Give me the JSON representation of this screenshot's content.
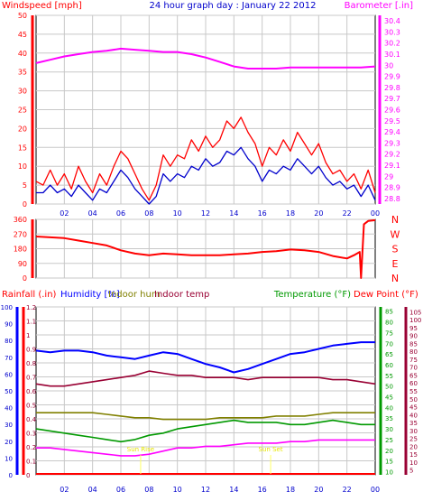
{
  "chart_data": [
    {
      "type": "line",
      "title": "24 hour graph day : January 22 2012",
      "left_axis_label": "Windspeed [mph]",
      "right_axis_label": "Barometer [.in]",
      "y_left_ticks": [
        "0",
        "5",
        "10",
        "15",
        "20",
        "25",
        "30",
        "35",
        "40",
        "45",
        "50"
      ],
      "y_left_range": [
        0,
        50
      ],
      "y_right_ticks": [
        "28.8",
        "28.9",
        "29",
        "29.1",
        "29.2",
        "29.3",
        "29.4",
        "29.5",
        "29.6",
        "29.7",
        "29.8",
        "29.9",
        "30",
        "30.1",
        "30.2",
        "30.3",
        "30.4"
      ],
      "y_right_range": [
        28.75,
        30.45
      ],
      "x_range": [
        0,
        24
      ],
      "x_ticks": [
        "02",
        "04",
        "06",
        "08",
        "10",
        "12",
        "14",
        "16",
        "18",
        "20",
        "22",
        "00"
      ],
      "series": [
        {
          "key": "barometer",
          "color": "#ff00ff",
          "axis": "right",
          "x": [
            0,
            1,
            2,
            3,
            4,
            5,
            6,
            7,
            8,
            9,
            10,
            11,
            12,
            13,
            14,
            15,
            16,
            17,
            18,
            19,
            20,
            21,
            22,
            23,
            24
          ],
          "y": [
            30.02,
            30.05,
            30.08,
            30.1,
            30.12,
            30.13,
            30.15,
            30.14,
            30.13,
            30.12,
            30.12,
            30.1,
            30.07,
            30.03,
            29.99,
            29.97,
            29.97,
            29.97,
            29.98,
            29.98,
            29.98,
            29.98,
            29.98,
            29.98,
            29.99
          ]
        },
        {
          "key": "gust",
          "color": "#ff0000",
          "axis": "left",
          "x": [
            0,
            0.5,
            1,
            1.5,
            2,
            2.5,
            3,
            3.5,
            4,
            4.5,
            5,
            5.5,
            6,
            6.5,
            7,
            7.5,
            8,
            8.5,
            9,
            9.5,
            10,
            10.5,
            11,
            11.5,
            12,
            12.5,
            13,
            13.5,
            14,
            14.5,
            15,
            15.5,
            16,
            16.5,
            17,
            17.5,
            18,
            18.5,
            19,
            19.5,
            20,
            20.5,
            21,
            21.5,
            22,
            22.5,
            23,
            23.5,
            24
          ],
          "y": [
            6,
            5,
            9,
            5,
            8,
            4,
            10,
            6,
            3,
            8,
            5,
            10,
            14,
            12,
            8,
            4,
            1,
            5,
            13,
            10,
            13,
            12,
            17,
            14,
            18,
            15,
            17,
            22,
            20,
            23,
            19,
            16,
            10,
            15,
            13,
            17,
            14,
            19,
            16,
            13,
            16,
            11,
            8,
            9,
            6,
            8,
            4,
            9,
            3
          ]
        },
        {
          "key": "windspeed",
          "color": "#0000cc",
          "axis": "left",
          "x": [
            0,
            0.5,
            1,
            1.5,
            2,
            2.5,
            3,
            3.5,
            4,
            4.5,
            5,
            5.5,
            6,
            6.5,
            7,
            7.5,
            8,
            8.5,
            9,
            9.5,
            10,
            10.5,
            11,
            11.5,
            12,
            12.5,
            13,
            13.5,
            14,
            14.5,
            15,
            15.5,
            16,
            16.5,
            17,
            17.5,
            18,
            18.5,
            19,
            19.5,
            20,
            20.5,
            21,
            21.5,
            22,
            22.5,
            23,
            23.5,
            24
          ],
          "y": [
            3,
            3,
            5,
            3,
            4,
            2,
            5,
            3,
            1,
            4,
            3,
            6,
            9,
            7,
            4,
            2,
            0,
            2,
            8,
            6,
            8,
            7,
            10,
            9,
            12,
            10,
            11,
            14,
            13,
            15,
            12,
            10,
            6,
            9,
            8,
            10,
            9,
            12,
            10,
            8,
            10,
            7,
            5,
            6,
            4,
            5,
            2,
            5,
            1
          ]
        }
      ]
    },
    {
      "type": "line",
      "title": "",
      "direction_labels": [
        "N",
        "W",
        "S",
        "E",
        "N"
      ],
      "y_ticks": [
        "0",
        "90",
        "180",
        "270",
        "360"
      ],
      "y_range": [
        0,
        360
      ],
      "x_range": [
        0,
        24
      ],
      "series": [
        {
          "key": "wind_direction",
          "color": "#ff0000",
          "x": [
            0,
            1,
            2,
            3,
            4,
            5,
            6,
            7,
            8,
            9,
            10,
            11,
            12,
            13,
            14,
            15,
            16,
            17,
            18,
            19,
            20,
            21,
            22,
            22.5,
            22.9,
            23,
            23.2,
            23.5,
            24
          ],
          "y": [
            255,
            250,
            245,
            230,
            215,
            200,
            170,
            150,
            140,
            150,
            145,
            140,
            140,
            140,
            145,
            150,
            160,
            165,
            175,
            170,
            160,
            135,
            120,
            140,
            160,
            0,
            330,
            350,
            355
          ]
        }
      ]
    },
    {
      "type": "line",
      "labels": {
        "rainfall": "Rainfall (.in)",
        "humidity": "Humidity [%]",
        "indoor_hum": "Indoor hum",
        "indoor_temp": "Indoor temp",
        "temperature": "Temperature (°F)",
        "dew_point": "Dew Point (°F)"
      },
      "annotations": [
        "Sun Rise",
        "Sun Set"
      ],
      "annotation_x": [
        7.4,
        16.6
      ],
      "rain_ticks": [
        "0",
        "0.1",
        "0.2",
        "0.3",
        "0.4",
        "0.5",
        "0.6",
        "0.7",
        "0.8",
        "0.9",
        "1",
        "1.1",
        "1.2"
      ],
      "rain_range": [
        0,
        1.2
      ],
      "humidity_ticks": [
        "0",
        "10",
        "20",
        "30",
        "40",
        "50",
        "60",
        "70",
        "80",
        "90",
        "100"
      ],
      "humidity_range": [
        0,
        100
      ],
      "temp_ticks": [
        "10",
        "15",
        "20",
        "25",
        "30",
        "35",
        "40",
        "45",
        "50",
        "55",
        "60",
        "65",
        "70",
        "75",
        "80",
        "85"
      ],
      "temp_range": [
        8.5,
        87
      ],
      "dew_ticks": [
        "5",
        "10",
        "15",
        "20",
        "25",
        "30",
        "35",
        "40",
        "45",
        "50",
        "55",
        "60",
        "65",
        "70",
        "75",
        "80",
        "85",
        "90",
        "95",
        "100",
        "105"
      ],
      "dew_range": [
        2,
        108
      ],
      "x_range": [
        0,
        24
      ],
      "x_ticks": [
        "02",
        "04",
        "06",
        "08",
        "10",
        "12",
        "14",
        "16",
        "18",
        "20",
        "22",
        "00"
      ],
      "series": [
        {
          "key": "humidity",
          "color": "#0000ff",
          "axis": "humidity",
          "x": [
            0,
            1,
            2,
            3,
            4,
            5,
            6,
            7,
            8,
            9,
            10,
            11,
            12,
            13,
            14,
            15,
            16,
            17,
            18,
            19,
            20,
            21,
            22,
            23,
            24
          ],
          "y": [
            74,
            73,
            74,
            74,
            73,
            71,
            70,
            69,
            71,
            73,
            72,
            69,
            66,
            64,
            61,
            63,
            66,
            69,
            72,
            73,
            75,
            77,
            78,
            79,
            79
          ]
        },
        {
          "key": "indoor_temp",
          "color": "#990033",
          "axis": "temp",
          "x": [
            0,
            1,
            2,
            3,
            4,
            5,
            6,
            7,
            8,
            9,
            10,
            11,
            12,
            13,
            14,
            15,
            16,
            17,
            18,
            19,
            20,
            21,
            22,
            23,
            24
          ],
          "y": [
            51,
            50,
            50,
            51,
            52,
            53,
            54,
            55,
            57,
            56,
            55,
            55,
            54,
            54,
            54,
            53,
            54,
            54,
            54,
            54,
            54,
            53,
            53,
            52,
            51
          ]
        },
        {
          "key": "indoor_hum",
          "color": "#808000",
          "axis": "humidity",
          "x": [
            0,
            1,
            2,
            3,
            4,
            5,
            6,
            7,
            8,
            9,
            10,
            11,
            12,
            13,
            14,
            15,
            16,
            17,
            18,
            19,
            20,
            21,
            22,
            23,
            24
          ],
          "y": [
            37,
            37,
            37,
            37,
            37,
            36,
            35,
            34,
            34,
            33,
            33,
            33,
            33,
            34,
            34,
            34,
            34,
            35,
            35,
            35,
            36,
            37,
            37,
            37,
            37
          ]
        },
        {
          "key": "temperature",
          "color": "#009900",
          "axis": "temp",
          "x": [
            0,
            1,
            2,
            3,
            4,
            5,
            6,
            7,
            8,
            9,
            10,
            11,
            12,
            13,
            14,
            15,
            16,
            17,
            18,
            19,
            20,
            21,
            22,
            23,
            24
          ],
          "y": [
            30,
            29,
            28,
            27,
            26,
            25,
            24,
            25,
            27,
            28,
            30,
            31,
            32,
            33,
            34,
            33,
            33,
            33,
            32,
            32,
            33,
            34,
            33,
            32,
            32
          ]
        },
        {
          "key": "dew_point",
          "color": "#ff00ff",
          "axis": "dew",
          "x": [
            0,
            1,
            2,
            3,
            4,
            5,
            6,
            7,
            8,
            9,
            10,
            11,
            12,
            13,
            14,
            15,
            16,
            17,
            18,
            19,
            20,
            21,
            22,
            23,
            24
          ],
          "y": [
            19,
            19,
            18,
            17,
            16,
            15,
            14,
            14,
            15,
            17,
            19,
            19,
            20,
            20,
            21,
            22,
            22,
            22,
            23,
            23,
            24,
            24,
            24,
            24,
            24
          ]
        }
      ]
    }
  ]
}
